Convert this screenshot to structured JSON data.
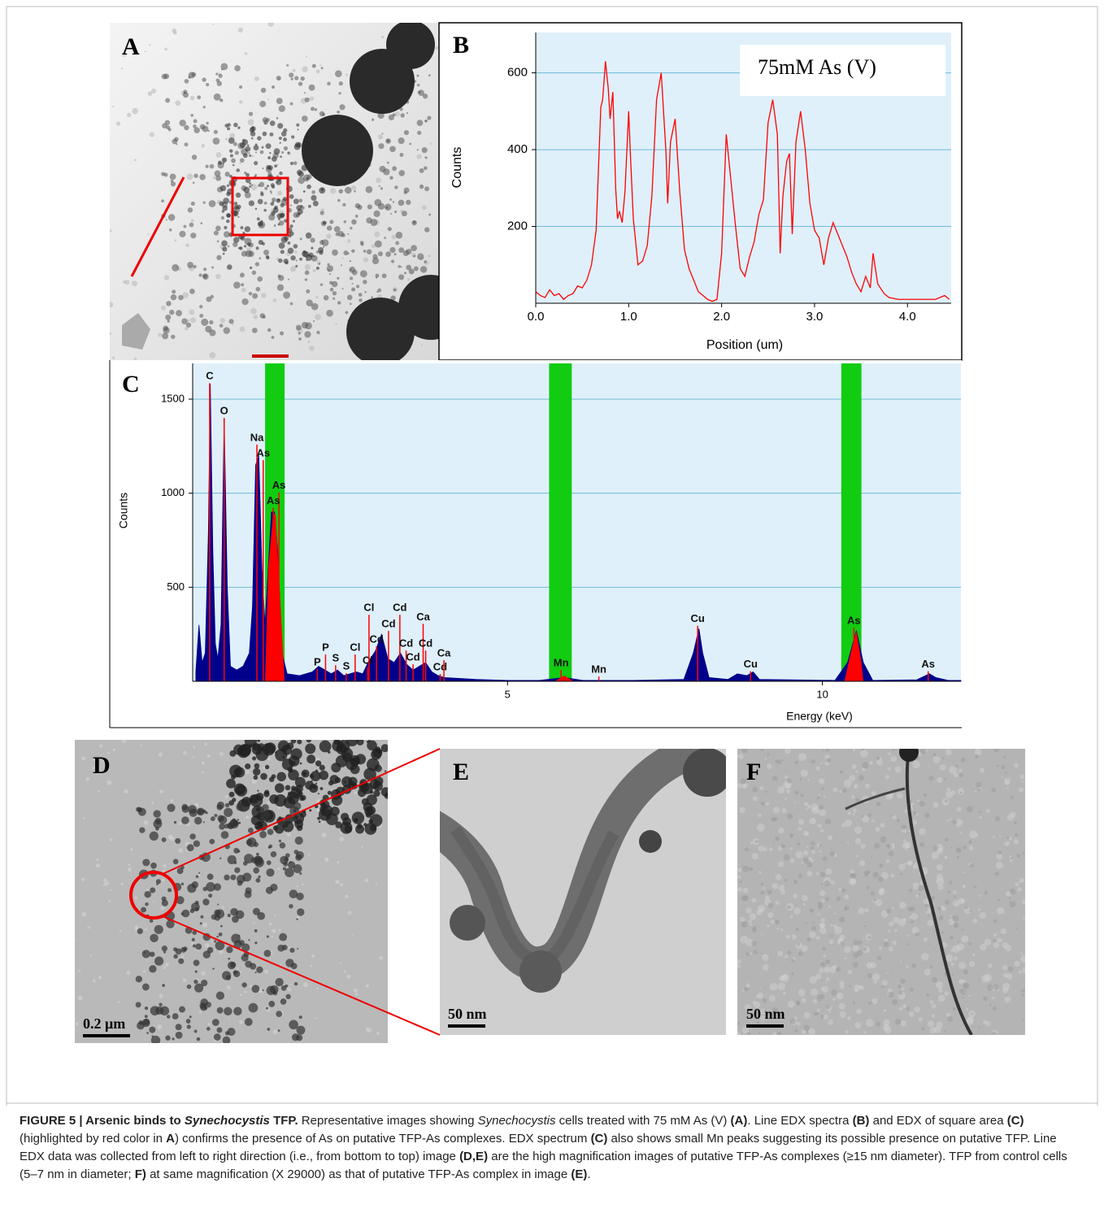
{
  "panel_labels": [
    "A",
    "B",
    "C",
    "D",
    "E",
    "F"
  ],
  "scale_bars": [
    "0.2 μm",
    "50 nm",
    "50 nm"
  ],
  "chart_data": [
    {
      "type": "line",
      "annotation": "75mM As (V)",
      "x_label": "Position (um)",
      "y_label": "Counts",
      "color": "#ff0000",
      "x": [
        0.0,
        0.05,
        0.1,
        0.15,
        0.2,
        0.25,
        0.3,
        0.35,
        0.4,
        0.45,
        0.5,
        0.55,
        0.6,
        0.65,
        0.7,
        0.72,
        0.75,
        0.78,
        0.8,
        0.83,
        0.86,
        0.88,
        0.9,
        0.93,
        0.96,
        1.0,
        1.02,
        1.05,
        1.1,
        1.15,
        1.2,
        1.25,
        1.3,
        1.35,
        1.4,
        1.42,
        1.45,
        1.5,
        1.55,
        1.6,
        1.65,
        1.7,
        1.75,
        1.8,
        1.85,
        1.9,
        1.95,
        2.0,
        2.05,
        2.1,
        2.15,
        2.2,
        2.25,
        2.3,
        2.35,
        2.4,
        2.45,
        2.5,
        2.55,
        2.6,
        2.63,
        2.66,
        2.7,
        2.73,
        2.76,
        2.8,
        2.85,
        2.9,
        2.95,
        3.0,
        3.05,
        3.1,
        3.15,
        3.2,
        3.25,
        3.3,
        3.35,
        3.4,
        3.45,
        3.5,
        3.55,
        3.6,
        3.63,
        3.68,
        3.75,
        3.8,
        3.9,
        4.0,
        4.1,
        4.2,
        4.3,
        4.4,
        4.45
      ],
      "values": [
        30,
        20,
        15,
        35,
        20,
        25,
        10,
        20,
        25,
        45,
        40,
        60,
        100,
        190,
        510,
        530,
        630,
        560,
        480,
        550,
        300,
        220,
        240,
        210,
        290,
        500,
        380,
        220,
        100,
        110,
        150,
        280,
        530,
        600,
        400,
        260,
        420,
        480,
        290,
        140,
        90,
        60,
        30,
        20,
        10,
        5,
        10,
        130,
        440,
        320,
        200,
        90,
        70,
        120,
        160,
        230,
        270,
        470,
        530,
        440,
        130,
        280,
        370,
        390,
        180,
        420,
        500,
        400,
        260,
        190,
        170,
        100,
        170,
        210,
        180,
        150,
        120,
        80,
        50,
        30,
        70,
        40,
        130,
        50,
        25,
        15,
        10,
        10,
        10,
        10,
        10,
        20,
        10
      ],
      "xlim": [
        0,
        4.47
      ],
      "ylim": [
        0,
        705
      ],
      "xticks": [
        {
          "value": 0,
          "label": "0.0"
        },
        {
          "value": 1,
          "label": "1.0"
        },
        {
          "value": 2,
          "label": "2.0"
        },
        {
          "value": 3,
          "label": "3.0"
        },
        {
          "value": 4,
          "label": "4.0"
        }
      ],
      "yticks": [
        200,
        400,
        600
      ],
      "grid": true
    },
    {
      "type": "area",
      "x_label": "Energy (keV)",
      "y_label": "Counts",
      "color": "#00008b",
      "x": [
        0.05,
        0.1,
        0.15,
        0.2,
        0.25,
        0.28,
        0.32,
        0.36,
        0.4,
        0.45,
        0.5,
        0.55,
        0.6,
        0.7,
        0.8,
        0.9,
        0.95,
        1.0,
        1.05,
        1.1,
        1.15,
        1.2,
        1.25,
        1.3,
        1.35,
        1.42,
        1.5,
        1.7,
        1.9,
        2.0,
        2.1,
        2.2,
        2.3,
        2.4,
        2.6,
        2.7,
        2.8,
        2.9,
        3.0,
        3.1,
        3.2,
        3.3,
        3.4,
        3.5,
        3.6,
        3.7,
        3.8,
        3.9,
        4.0,
        4.5,
        5.0,
        5.5,
        5.9,
        6.2,
        7.0,
        7.8,
        7.95,
        8.04,
        8.1,
        8.2,
        8.5,
        8.65,
        8.8,
        8.9,
        9.0,
        9.5,
        10.2,
        10.4,
        10.54,
        10.65,
        10.8,
        11.5,
        11.7,
        11.8,
        12.0,
        12.2
      ],
      "values": [
        50,
        300,
        100,
        150,
        800,
        1580,
        700,
        200,
        120,
        300,
        1400,
        500,
        80,
        60,
        80,
        150,
        400,
        1150,
        1200,
        600,
        300,
        600,
        900,
        900,
        700,
        150,
        40,
        30,
        50,
        80,
        60,
        40,
        60,
        30,
        50,
        40,
        110,
        160,
        250,
        120,
        100,
        150,
        90,
        60,
        80,
        100,
        50,
        30,
        20,
        10,
        5,
        5,
        20,
        5,
        5,
        10,
        150,
        280,
        150,
        20,
        10,
        40,
        30,
        50,
        10,
        8,
        5,
        100,
        270,
        100,
        5,
        8,
        40,
        20,
        5,
        5
      ],
      "highlight_color": "#ff0000",
      "highlights": [
        {
          "x": [
            1.15,
            1.2,
            1.28,
            1.32,
            1.38,
            1.46
          ],
          "values": [
            0,
            600,
            900,
            880,
            500,
            0
          ]
        },
        {
          "x": [
            5.75,
            5.9,
            6.05
          ],
          "values": [
            0,
            30,
            0
          ]
        },
        {
          "x": [
            10.35,
            10.45,
            10.54,
            10.62,
            10.65
          ],
          "values": [
            0,
            150,
            270,
            100,
            0
          ]
        }
      ],
      "region_color": "#11cc11",
      "regions": [
        [
          1.15,
          1.46
        ],
        [
          5.66,
          6.02
        ],
        [
          10.3,
          10.62
        ]
      ],
      "peak_label_color": "#ff0000",
      "peak_labels": [
        {
          "label": "C",
          "x": 0.27,
          "y": 1620
        },
        {
          "label": "O",
          "x": 0.5,
          "y": 1435
        },
        {
          "label": "Na",
          "x": 1.02,
          "y": 1293
        },
        {
          "label": "As",
          "x": 1.12,
          "y": 1211
        },
        {
          "label": "As",
          "x": 1.37,
          "y": 1039
        },
        {
          "label": "As",
          "x": 1.28,
          "y": 957
        },
        {
          "label": "P",
          "x": 1.98,
          "y": 100
        },
        {
          "label": "P",
          "x": 2.11,
          "y": 177
        },
        {
          "label": "S",
          "x": 2.27,
          "y": 120
        },
        {
          "label": "S",
          "x": 2.44,
          "y": 78
        },
        {
          "label": "Cl",
          "x": 2.58,
          "y": 177
        },
        {
          "label": "Cl",
          "x": 2.78,
          "y": 108
        },
        {
          "label": "Cl",
          "x": 2.8,
          "y": 388
        },
        {
          "label": "Cd",
          "x": 2.92,
          "y": 220
        },
        {
          "label": "Cd",
          "x": 3.11,
          "y": 302
        },
        {
          "label": "Cd",
          "x": 3.29,
          "y": 388
        },
        {
          "label": "Cd",
          "x": 3.39,
          "y": 198
        },
        {
          "label": "Cd",
          "x": 3.5,
          "y": 125
        },
        {
          "label": "Ca",
          "x": 3.66,
          "y": 340
        },
        {
          "label": "Cd",
          "x": 3.7,
          "y": 198
        },
        {
          "label": "Cd",
          "x": 3.93,
          "y": 73
        },
        {
          "label": "Ca",
          "x": 3.99,
          "y": 147
        },
        {
          "label": "Mn",
          "x": 5.85,
          "y": 95
        },
        {
          "label": "Mn",
          "x": 6.45,
          "y": 60
        },
        {
          "label": "Cu",
          "x": 8.02,
          "y": 330
        },
        {
          "label": "Cu",
          "x": 8.86,
          "y": 88
        },
        {
          "label": "As",
          "x": 10.5,
          "y": 320
        },
        {
          "label": "As",
          "x": 11.68,
          "y": 88
        }
      ],
      "xlim": [
        0,
        12.2
      ],
      "ylim": [
        0,
        1690
      ],
      "xticks": [
        5,
        10
      ],
      "yticks": [
        500,
        1000,
        1500
      ],
      "grid": true
    }
  ],
  "caption": [
    {
      "text": "FIGURE 5 | Arsenic binds to ",
      "style": "b"
    },
    {
      "text": "Synechocystis",
      "style": "bi"
    },
    {
      "text": " TFP.",
      "style": "b"
    },
    {
      "text": " Representative images showing ",
      "style": "n"
    },
    {
      "text": "Synechocystis",
      "style": "i"
    },
    {
      "text": " cells treated with 75 mM As (V) ",
      "style": "n"
    },
    {
      "text": "(A)",
      "style": "b"
    },
    {
      "text": ". Line EDX spectra ",
      "style": "n"
    },
    {
      "text": "(B)",
      "style": "b"
    },
    {
      "text": " and EDX of square area ",
      "style": "n"
    },
    {
      "text": "(C)",
      "style": "b"
    },
    {
      "text": " (highlighted by red color in ",
      "style": "n"
    },
    {
      "text": "A",
      "style": "b"
    },
    {
      "text": ") confirms the presence of As on putative TFP-As complexes. EDX spectrum ",
      "style": "n"
    },
    {
      "text": "(C)",
      "style": "b"
    },
    {
      "text": " also shows small Mn peaks suggesting its possible presence on putative TFP. Line EDX data was collected from left to right direction (i.e., from bottom to top) image ",
      "style": "n"
    },
    {
      "text": "(D,E)",
      "style": "b"
    },
    {
      "text": " are the high magnification images of putative TFP-As complexes (≥15 nm diameter). TFP from control cells (5–7 nm in diameter; ",
      "style": "n"
    },
    {
      "text": "F)",
      "style": "b"
    },
    {
      "text": " at same magnification (X 29000) as that of putative TFP-As complex in image ",
      "style": "n"
    },
    {
      "text": "(E)",
      "style": "b"
    },
    {
      "text": ".",
      "style": "n"
    }
  ]
}
